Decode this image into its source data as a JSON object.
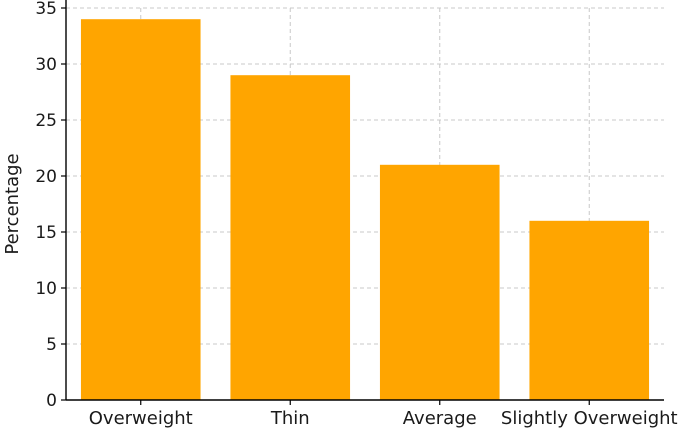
{
  "chart_data": {
    "type": "bar",
    "categories": [
      "Overweight",
      "Thin",
      "Average",
      "Slightly Overweight"
    ],
    "values": [
      34,
      29,
      21,
      16
    ],
    "title": "",
    "xlabel": "",
    "ylabel": "Percentage",
    "ylim": [
      0,
      35
    ],
    "yticks": [
      0,
      5,
      10,
      15,
      20,
      25,
      30,
      35
    ],
    "grid": true,
    "bar_color": "#FFA500",
    "grid_color": "#c8c8c8"
  }
}
